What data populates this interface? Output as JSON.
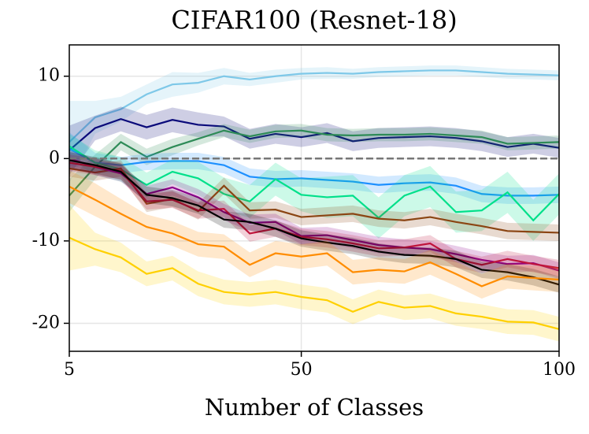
{
  "chart_data": {
    "type": "line",
    "title": "CIFAR100 (Resnet-18)",
    "x_label": "Number of Classes",
    "x": [
      5,
      10,
      15,
      20,
      25,
      30,
      35,
      40,
      45,
      50,
      55,
      60,
      65,
      70,
      75,
      80,
      85,
      90,
      95,
      100
    ],
    "xlim": [
      5,
      100
    ],
    "xticks": [
      5,
      50,
      100
    ],
    "ylim": [
      -23.4,
      13.8
    ],
    "yticks": [
      -20,
      -10,
      0,
      10
    ],
    "grid": true,
    "hline": {
      "value": 0,
      "color": "#777777"
    },
    "series": [
      {
        "name": "s1",
        "color": "#7ec8e8",
        "values": [
          2,
          5,
          6,
          7.8,
          9,
          9.2,
          10,
          9.6,
          10,
          10.3,
          10.4,
          10.3,
          10.5,
          10.6,
          10.7,
          10.7,
          10.5,
          10.3,
          10.2,
          10.1
        ],
        "errors": [
          5,
          2,
          1.5,
          1.2,
          1.5,
          1.2,
          1,
          0.8,
          0.8,
          0.7,
          0.7,
          0.6,
          0.6,
          0.6,
          0.6,
          0.6,
          0.6,
          0.6,
          0.6,
          0.6
        ]
      },
      {
        "name": "s2",
        "color": "#0a0a7a",
        "values": [
          1,
          3.7,
          4.8,
          3.8,
          4.7,
          4.1,
          3.9,
          2.4,
          3,
          2.6,
          3.1,
          2.1,
          2.5,
          2.6,
          2.7,
          2.5,
          2.1,
          1.4,
          1.8,
          1.3
        ],
        "errors": [
          3,
          1.5,
          1.5,
          1.5,
          1.5,
          1.5,
          1.2,
          1.2,
          1.2,
          1.2,
          1.2,
          1.2,
          1.2,
          1.2,
          1.2,
          1.2,
          1.2,
          1.2,
          1.2,
          1.2
        ]
      },
      {
        "name": "s3",
        "color": "#2e8b57",
        "values": [
          -4.5,
          -1,
          2,
          0.2,
          1.4,
          2.4,
          3.4,
          2.7,
          3.3,
          3.4,
          2.9,
          2.8,
          2.9,
          2.9,
          3,
          2.8,
          2.6,
          1.8,
          1.9,
          2.0
        ],
        "errors": [
          2,
          1.5,
          1,
          1,
          1,
          0.8,
          0.8,
          0.8,
          0.8,
          0.8,
          0.8,
          0.8,
          0.8,
          0.8,
          0.8,
          0.8,
          0.8,
          0.8,
          0.8,
          0.8
        ]
      },
      {
        "name": "s4",
        "color": "#1e90ff",
        "values": [
          1.2,
          -0.5,
          -0.8,
          -0.4,
          -0.3,
          -0.3,
          -0.8,
          -2.2,
          -2.5,
          -2.4,
          -2.6,
          -2.8,
          -3.2,
          -3,
          -2.9,
          -3.3,
          -4.3,
          -4.5,
          -4.5,
          -4.4
        ],
        "errors": [
          2,
          1.2,
          1,
          1,
          1,
          1,
          1,
          1,
          1,
          1,
          1,
          1,
          1,
          1,
          1,
          1,
          1,
          1,
          1,
          1
        ]
      },
      {
        "name": "s5",
        "color": "#00e08a",
        "values": [
          1.5,
          -0.5,
          -1.3,
          -3.2,
          -1.6,
          -2.4,
          -4.3,
          -5.2,
          -2.5,
          -4.4,
          -4.7,
          -4.5,
          -7.2,
          -4.5,
          -3.4,
          -6.5,
          -6.3,
          -4.1,
          -7.5,
          -4.3
        ],
        "errors": [
          1.5,
          1.5,
          1.5,
          1.5,
          1.5,
          2,
          2,
          2,
          2,
          2,
          2.5,
          2.5,
          2.5,
          2.5,
          2.5,
          2.5,
          2.5,
          2.5,
          2.5,
          2.5
        ]
      },
      {
        "name": "s6",
        "color": "#8b4513",
        "values": [
          -1.2,
          -1.7,
          -1.2,
          -5.5,
          -4.9,
          -6.4,
          -3.3,
          -6.3,
          -6.2,
          -7.1,
          -6.9,
          -6.7,
          -7.3,
          -7.5,
          -7.1,
          -7.7,
          -8.2,
          -8.8,
          -8.9,
          -9
        ],
        "errors": [
          1,
          1,
          1,
          1,
          1,
          1,
          1,
          1,
          1,
          1,
          1,
          1,
          1,
          1,
          1,
          1,
          1,
          1,
          1,
          1
        ]
      },
      {
        "name": "s7",
        "color": "#8b008b",
        "values": [
          0,
          -1,
          -1.8,
          -4.3,
          -3.5,
          -4.7,
          -6.5,
          -7.8,
          -7.7,
          -9.4,
          -9.3,
          -9.9,
          -10.5,
          -10.8,
          -11,
          -11.6,
          -12.3,
          -12.8,
          -12.7,
          -13.6
        ],
        "errors": [
          1,
          1,
          1,
          1,
          1,
          1,
          1,
          1,
          1,
          1,
          1,
          1,
          1,
          1,
          1,
          1,
          1,
          1,
          1,
          1
        ]
      },
      {
        "name": "s8",
        "color": "#c0143c",
        "values": [
          -0.5,
          -1,
          -1.5,
          -5.2,
          -5,
          -6.3,
          -6.1,
          -9.1,
          -8.5,
          -9.5,
          -9.8,
          -10.3,
          -10.9,
          -10.8,
          -10.3,
          -12.2,
          -12.9,
          -12.2,
          -12.8,
          -13.3
        ],
        "errors": [
          1,
          1,
          1,
          1,
          1,
          1,
          1,
          1,
          1,
          1,
          1,
          1,
          1,
          1,
          1,
          1,
          1,
          1,
          1,
          1
        ]
      },
      {
        "name": "s9",
        "color": "#000000",
        "values": [
          -0.2,
          -0.8,
          -1.6,
          -4.4,
          -4.8,
          -5.7,
          -7.4,
          -7.7,
          -8.5,
          -9.7,
          -10.2,
          -10.6,
          -11.3,
          -11.7,
          -11.8,
          -12.2,
          -13.5,
          -13.8,
          -14.4,
          -15.3
        ],
        "errors": [
          1,
          1,
          1,
          1,
          1,
          1,
          1,
          1,
          1,
          1,
          1,
          1,
          1,
          1,
          1,
          1,
          1,
          1,
          1,
          1
        ]
      },
      {
        "name": "s10",
        "color": "#ff8c00",
        "values": [
          -3.4,
          -5,
          -6.7,
          -8.3,
          -9.1,
          -10.4,
          -10.7,
          -12.9,
          -11.5,
          -11.9,
          -11.5,
          -13.8,
          -13.5,
          -13.7,
          -12.6,
          -14,
          -15.5,
          -14.3,
          -14.5,
          -14.7
        ],
        "errors": [
          2,
          2,
          1.8,
          1.5,
          1.5,
          1.5,
          1.5,
          1.5,
          1.5,
          1.5,
          1.5,
          1.5,
          1.5,
          1.5,
          1.5,
          1.5,
          1.5,
          1.5,
          1.5,
          1.5
        ]
      },
      {
        "name": "s11",
        "color": "#ffd000",
        "values": [
          -9.6,
          -11,
          -12,
          -14,
          -13.3,
          -15.2,
          -16.2,
          -16.5,
          -16.2,
          -16.8,
          -17.2,
          -18.6,
          -17.4,
          -18.1,
          -17.9,
          -18.8,
          -19.2,
          -19.8,
          -19.9,
          -20.7
        ],
        "errors": [
          4,
          2,
          1.8,
          1.5,
          1.5,
          1.5,
          1.5,
          1.5,
          1.5,
          1.5,
          1.5,
          1.5,
          1.5,
          1.5,
          1.5,
          1.5,
          1.5,
          1.5,
          1.5,
          1.5
        ]
      }
    ]
  }
}
